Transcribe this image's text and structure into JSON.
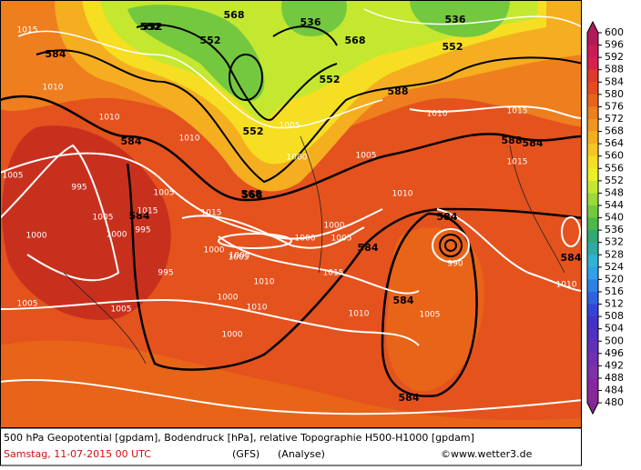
{
  "map": {
    "contour_labels": [
      "552",
      "568",
      "552",
      "536",
      "552",
      "552",
      "568",
      "588",
      "552",
      "584",
      "552",
      "568",
      "584",
      "584",
      "588",
      "584",
      "584",
      "584",
      "584",
      "568",
      "584",
      "536",
      "584"
    ],
    "pressure_labels": [
      "1015",
      "1010",
      "1005",
      "1010",
      "1005",
      "1000",
      "1005",
      "995",
      "1000",
      "1005",
      "1015",
      "1010",
      "1005",
      "1000",
      "1005",
      "995",
      "1015",
      "1000",
      "1010",
      "1005",
      "1000",
      "1000",
      "1010",
      "1005",
      "995",
      "990",
      "1000",
      "1005",
      "1010",
      "1015",
      "1010",
      "1005",
      "1010",
      "1015",
      "1010",
      "1000",
      "1005",
      "1015"
    ]
  },
  "colorbar": {
    "labels": [
      "600",
      "596",
      "592",
      "588",
      "584",
      "580",
      "576",
      "572",
      "568",
      "564",
      "560",
      "556",
      "552",
      "548",
      "544",
      "540",
      "536",
      "532",
      "528",
      "524",
      "520",
      "516",
      "512",
      "508",
      "504",
      "500",
      "496",
      "492",
      "488",
      "484",
      "480"
    ],
    "colors": [
      "#b01a5a",
      "#c81c58",
      "#d8204c",
      "#e03a2c",
      "#e44c1e",
      "#e86418",
      "#ee7e1e",
      "#f09620",
      "#f4ae20",
      "#f6c622",
      "#f6de22",
      "#eaf024",
      "#c4e830",
      "#9cd838",
      "#74c840",
      "#4cb84a",
      "#34a872",
      "#30aaa2",
      "#30b2d2",
      "#30a0e8",
      "#3080e8",
      "#3062e0",
      "#3444d8",
      "#4232c8",
      "#5230c0",
      "#6230b8",
      "#7230b0",
      "#8030a8",
      "#8828a0",
      "#882898",
      "#802890"
    ]
  },
  "footer": {
    "line1": "500 hPa Geopotential [gpdam], Bodendruck [hPa], relative Topographie H500-H1000 [gpdam]",
    "date": "Samstag, 11-07-2015  00 UTC",
    "model": "(GFS)",
    "run": "(Analyse)",
    "credit": "©www.wetter3.de"
  }
}
